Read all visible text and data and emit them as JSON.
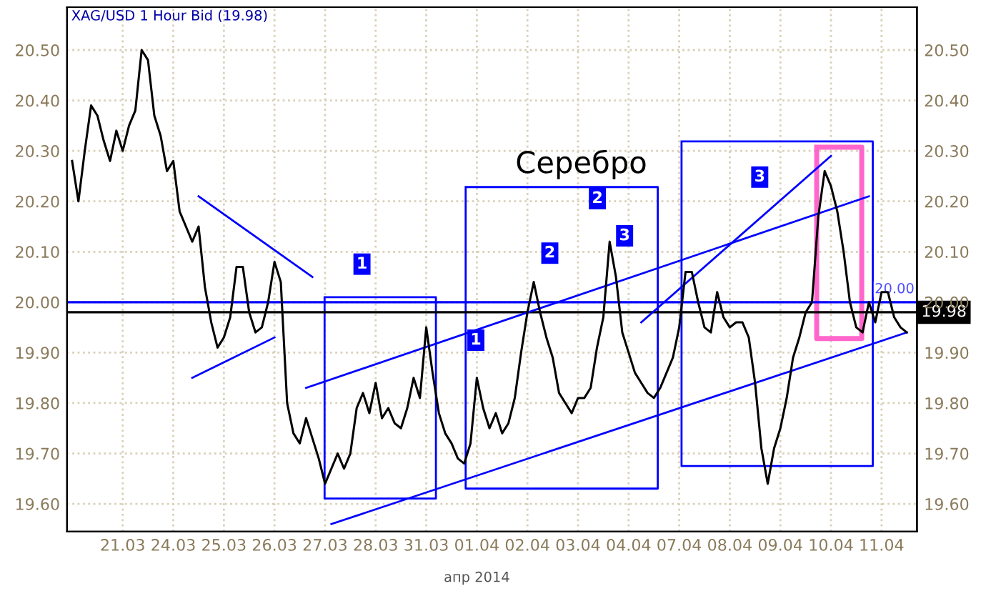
{
  "chart_data": {
    "type": "line",
    "title": "XAG/USD 1 Hour Bid (19.98)",
    "categories": [
      null,
      null,
      null,
      null,
      null,
      null,
      null,
      null,
      "21.03",
      null,
      null,
      null,
      null,
      null,
      null,
      null,
      "24.03",
      null,
      null,
      null,
      null,
      null,
      null,
      null,
      "25.03",
      null,
      null,
      null,
      null,
      null,
      null,
      null,
      "26.03",
      null,
      null,
      null,
      null,
      null,
      null,
      null,
      "27.03",
      null,
      null,
      null,
      null,
      null,
      null,
      null,
      "28.03",
      null,
      null,
      null,
      null,
      null,
      null,
      null,
      "31.03",
      null,
      null,
      null,
      null,
      null,
      null,
      null,
      "01.04",
      null,
      null,
      null,
      null,
      null,
      null,
      null,
      "02.04",
      null,
      null,
      null,
      null,
      null,
      null,
      null,
      "03.04",
      null,
      null,
      null,
      null,
      null,
      null,
      null,
      "04.04",
      null,
      null,
      null,
      null,
      null,
      null,
      null,
      "07.04",
      null,
      null,
      null,
      null,
      null,
      null,
      null,
      "08.04",
      null,
      null,
      null,
      null,
      null,
      null,
      null,
      "09.04",
      null,
      null,
      null,
      null,
      null,
      null,
      null,
      "10.04",
      null,
      null,
      null,
      null,
      null,
      null,
      null,
      "11.04",
      null,
      null,
      null,
      null
    ],
    "ylim": [
      19.545,
      20.585
    ],
    "yticks": [
      {
        "value": 19.6,
        "label": "19.60"
      },
      {
        "value": 19.7,
        "label": "19.70"
      },
      {
        "value": 19.8,
        "label": "19.80"
      },
      {
        "value": 19.9,
        "label": "19.90"
      },
      {
        "value": 20.0,
        "label": "20.00"
      },
      {
        "value": 20.1,
        "label": "20.10"
      },
      {
        "value": 20.2,
        "label": "20.20"
      },
      {
        "value": 20.3,
        "label": "20.30"
      },
      {
        "value": 20.4,
        "label": "20.40"
      },
      {
        "value": 20.5,
        "label": "20.50"
      }
    ],
    "y2lim": [
      19.545,
      20.585
    ],
    "y2ticks": [
      {
        "value": 19.6,
        "label": "19.60"
      },
      {
        "value": 19.7,
        "label": "19.70"
      },
      {
        "value": 19.8,
        "label": "19.80"
      },
      {
        "value": 19.9,
        "label": "19.90"
      },
      {
        "value": 20.0,
        "label": "20.00"
      },
      {
        "value": 20.1,
        "label": "20.10"
      },
      {
        "value": 20.2,
        "label": "20.20"
      },
      {
        "value": 20.3,
        "label": "20.30"
      },
      {
        "value": 20.4,
        "label": "20.40"
      },
      {
        "value": 20.5,
        "label": "20.50"
      }
    ],
    "grid": true,
    "marker": "none",
    "line_style": "solid",
    "series": [
      {
        "color": "#000000",
        "values": [
          20.28,
          20.2,
          20.3,
          20.39,
          20.37,
          20.32,
          20.28,
          20.34,
          20.3,
          20.35,
          20.38,
          20.5,
          20.48,
          20.37,
          20.33,
          20.26,
          20.28,
          20.18,
          20.15,
          20.12,
          20.15,
          20.03,
          19.96,
          19.91,
          19.93,
          19.97,
          20.07,
          20.07,
          19.98,
          19.94,
          19.95,
          20.0,
          20.08,
          20.04,
          19.8,
          19.74,
          19.72,
          19.77,
          19.73,
          19.69,
          19.64,
          19.67,
          19.7,
          19.67,
          19.7,
          19.79,
          19.82,
          19.78,
          19.84,
          19.77,
          19.79,
          19.76,
          19.75,
          19.79,
          19.85,
          19.81,
          19.95,
          19.86,
          19.78,
          19.74,
          19.72,
          19.69,
          19.68,
          19.72,
          19.85,
          19.79,
          19.75,
          19.78,
          19.74,
          19.76,
          19.81,
          19.9,
          19.98,
          20.04,
          19.98,
          19.93,
          19.89,
          19.82,
          19.8,
          19.78,
          19.81,
          19.81,
          19.83,
          19.91,
          19.97,
          20.12,
          20.05,
          19.94,
          19.9,
          19.86,
          19.84,
          19.82,
          19.81,
          19.83,
          19.86,
          19.89,
          19.95,
          20.06,
          20.06,
          20.0,
          19.95,
          19.94,
          20.02,
          19.97,
          19.95,
          19.96,
          19.96,
          19.93,
          19.84,
          19.71,
          19.64,
          19.71,
          19.75,
          19.81,
          19.89,
          19.93,
          19.98,
          20.0,
          20.17,
          20.26,
          20.23,
          20.18,
          20.1,
          20.0,
          19.95,
          19.94,
          20.0,
          19.96,
          20.02,
          20.02,
          19.97,
          19.95,
          19.94
        ]
      },
      {
        "color": "#0000ff",
        "values": [
          null,
          null,
          null,
          null,
          null,
          null,
          null,
          null,
          null,
          null,
          null,
          null,
          null,
          null,
          null,
          null,
          null,
          null,
          null,
          null,
          20.21,
          null,
          null,
          null,
          null,
          null,
          null,
          null,
          null,
          null,
          null,
          null,
          null,
          null,
          null,
          null,
          null,
          null,
          20.05,
          null,
          null,
          null,
          null,
          null,
          null,
          null,
          null,
          null,
          null,
          null,
          null,
          null,
          null,
          null,
          null,
          null,
          null,
          null,
          null,
          null,
          null,
          null,
          null,
          null,
          null,
          null,
          null,
          null,
          null,
          null,
          null,
          null,
          null,
          null,
          null,
          null,
          null,
          null,
          null,
          null,
          null,
          null,
          null,
          null,
          null,
          null,
          null,
          null,
          null,
          null,
          null,
          null,
          null,
          null,
          null,
          null,
          null,
          null,
          null,
          null,
          null,
          null,
          null,
          null,
          null,
          null,
          null,
          null,
          null,
          null,
          null,
          null,
          null,
          null,
          null,
          null,
          null,
          null,
          null,
          null,
          null,
          null,
          null,
          null,
          null,
          null,
          null,
          null,
          null,
          null,
          null,
          null,
          null
        ]
      },
      {
        "color": "#0000ff",
        "values": [
          null,
          null,
          null,
          null,
          null,
          null,
          null,
          null,
          null,
          null,
          null,
          null,
          null,
          null,
          null,
          null,
          null,
          null,
          null,
          19.85,
          null,
          null,
          null,
          null,
          null,
          null,
          null,
          null,
          null,
          null,
          null,
          null,
          19.93,
          null,
          null,
          null,
          null,
          null,
          null,
          null,
          null,
          null,
          null,
          null,
          null,
          null,
          null,
          null,
          null,
          null,
          null,
          null,
          null,
          null,
          null,
          null,
          null,
          null,
          null,
          null,
          null,
          null,
          null,
          null,
          null,
          null,
          null,
          null,
          null,
          null,
          null,
          null,
          null,
          null,
          null,
          null,
          null,
          null,
          null,
          null,
          null,
          null,
          null,
          null,
          null,
          null,
          null,
          null,
          null,
          null,
          null,
          null,
          null,
          null,
          null,
          null,
          null,
          null,
          null,
          null,
          null,
          null,
          null,
          null,
          null,
          null,
          null,
          null,
          null,
          null,
          null,
          null,
          null,
          null,
          null,
          null,
          null,
          null,
          null,
          null,
          null,
          null,
          null,
          null,
          null,
          null,
          null,
          null,
          null,
          null,
          null,
          null,
          null
        ]
      },
      {
        "color": "#0000ff",
        "values": [
          null,
          null,
          null,
          null,
          null,
          null,
          null,
          null,
          null,
          null,
          null,
          null,
          null,
          null,
          null,
          null,
          null,
          null,
          null,
          null,
          null,
          null,
          null,
          null,
          null,
          null,
          null,
          null,
          null,
          null,
          null,
          null,
          null,
          null,
          null,
          null,
          null,
          19.83,
          null,
          null,
          null,
          null,
          null,
          null,
          null,
          null,
          null,
          null,
          null,
          null,
          null,
          null,
          null,
          null,
          null,
          null,
          null,
          null,
          null,
          null,
          null,
          null,
          null,
          null,
          null,
          null,
          null,
          null,
          null,
          null,
          null,
          null,
          null,
          null,
          null,
          null,
          null,
          null,
          null,
          null,
          null,
          null,
          null,
          null,
          null,
          null,
          null,
          null,
          null,
          null,
          null,
          null,
          null,
          null,
          null,
          null,
          null,
          null,
          null,
          null,
          null,
          null,
          null,
          null,
          null,
          null,
          null,
          null,
          null,
          null,
          null,
          null,
          null,
          null,
          null,
          null,
          null,
          null,
          null,
          null,
          null,
          null,
          null,
          null,
          null,
          null,
          20.21,
          null,
          null,
          null,
          null,
          null,
          null
        ]
      },
      {
        "color": "#0000ff",
        "values": [
          null,
          null,
          null,
          null,
          null,
          null,
          null,
          null,
          null,
          null,
          null,
          null,
          null,
          null,
          null,
          null,
          null,
          null,
          null,
          null,
          null,
          null,
          null,
          null,
          null,
          null,
          null,
          null,
          null,
          null,
          null,
          null,
          null,
          null,
          null,
          null,
          null,
          null,
          null,
          null,
          null,
          19.56,
          null,
          null,
          null,
          null,
          null,
          null,
          null,
          null,
          null,
          null,
          null,
          null,
          null,
          null,
          null,
          null,
          null,
          null,
          null,
          null,
          null,
          null,
          null,
          null,
          null,
          null,
          null,
          null,
          null,
          null,
          null,
          null,
          null,
          null,
          null,
          null,
          null,
          null,
          null,
          null,
          null,
          null,
          null,
          null,
          null,
          null,
          null,
          null,
          null,
          null,
          null,
          null,
          null,
          null,
          null,
          null,
          null,
          null,
          null,
          null,
          null,
          null,
          null,
          null,
          null,
          null,
          null,
          null,
          null,
          null,
          null,
          null,
          null,
          null,
          null,
          null,
          null,
          null,
          null,
          null,
          null,
          null,
          null,
          null,
          null,
          null,
          null,
          null,
          null,
          null,
          19.94
        ]
      },
      {
        "color": "#0000ff",
        "values": [
          null,
          null,
          null,
          null,
          null,
          null,
          null,
          null,
          null,
          null,
          null,
          null,
          null,
          null,
          null,
          null,
          null,
          null,
          null,
          null,
          null,
          null,
          null,
          null,
          null,
          null,
          null,
          null,
          null,
          null,
          null,
          null,
          null,
          null,
          null,
          null,
          null,
          null,
          null,
          null,
          null,
          null,
          null,
          null,
          null,
          null,
          null,
          null,
          null,
          null,
          null,
          null,
          null,
          null,
          null,
          null,
          null,
          null,
          null,
          null,
          null,
          null,
          null,
          null,
          null,
          null,
          null,
          null,
          null,
          null,
          null,
          null,
          null,
          null,
          null,
          null,
          null,
          null,
          null,
          null,
          null,
          null,
          null,
          null,
          null,
          null,
          null,
          null,
          null,
          null,
          19.96,
          null,
          null,
          null,
          null,
          null,
          null,
          null,
          null,
          null,
          null,
          null,
          null,
          null,
          null,
          null,
          null,
          null,
          null,
          null,
          null,
          null,
          null,
          null,
          null,
          null,
          null,
          null,
          null,
          null,
          20.29,
          null,
          null,
          null,
          null,
          null,
          null,
          null,
          null,
          null,
          null,
          null,
          null
        ]
      }
    ],
    "ref_lines": [
      {
        "axis": "y",
        "value": 20.0,
        "label": "20.00",
        "color": "#0000ff"
      },
      {
        "axis": "y",
        "value": 19.98,
        "label": "19.98",
        "color": "#000000"
      }
    ],
    "annotations": [
      "1",
      "1",
      "2",
      "2",
      "3",
      "3",
      "Серебро",
      "апр 2014"
    ]
  }
}
